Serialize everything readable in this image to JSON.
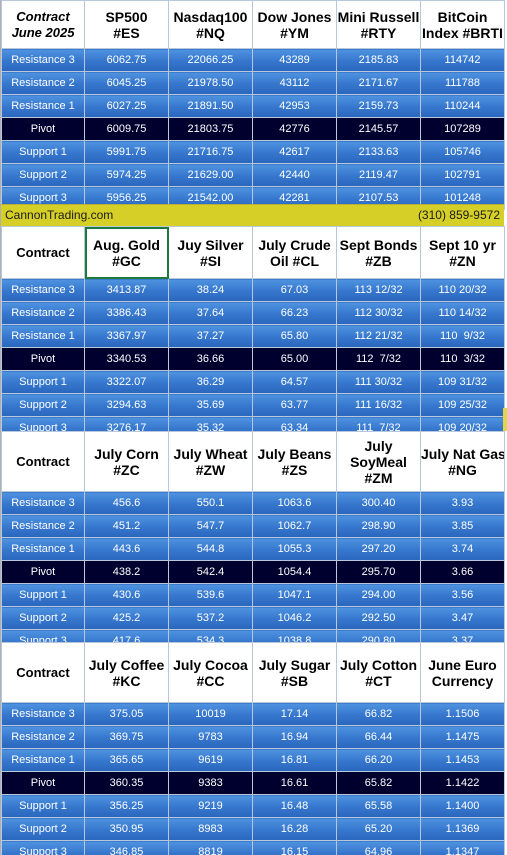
{
  "site": "CannonTrading.com",
  "phone": "(310) 859-9572",
  "colors": {
    "row_blue": "#3576cc",
    "pivot_navy": "#00002e",
    "banner_yellow": "#d6cf27",
    "selection_green": "#1d7a3a"
  },
  "blocks": [
    {
      "header_label": "Contract June 2025",
      "header_label_lines": [
        "Contract",
        "June 2025"
      ],
      "columns": [
        [
          "SP500",
          "#ES"
        ],
        [
          "Nasdaq100",
          "#NQ"
        ],
        [
          "Dow Jones",
          "#YM"
        ],
        [
          "Mini Russell",
          "#RTY"
        ],
        [
          "BitCoin",
          "Index #BRTI"
        ]
      ],
      "rows": [
        {
          "label": "Resistance 3",
          "values": [
            "6062.75",
            "22066.25",
            "43289",
            "2185.83",
            "114742"
          ]
        },
        {
          "label": "Resistance 2",
          "values": [
            "6045.25",
            "21978.50",
            "43112",
            "2171.67",
            "111788"
          ]
        },
        {
          "label": "Resistance 1",
          "values": [
            "6027.25",
            "21891.50",
            "42953",
            "2159.73",
            "110244"
          ]
        },
        {
          "label": "Pivot",
          "values": [
            "6009.75",
            "21803.75",
            "42776",
            "2145.57",
            "107289"
          ]
        },
        {
          "label": "Support 1",
          "values": [
            "5991.75",
            "21716.75",
            "42617",
            "2133.63",
            "105746"
          ]
        },
        {
          "label": "Support 2",
          "values": [
            "5974.25",
            "21629.00",
            "42440",
            "2119.47",
            "102791"
          ]
        },
        {
          "label": "Support 3",
          "values": [
            "5956.25",
            "21542.00",
            "42281",
            "2107.53",
            "101248"
          ]
        }
      ]
    },
    {
      "header_label": "Contract",
      "header_label_lines": [
        "Contract"
      ],
      "columns": [
        [
          "Aug. Gold",
          "#GC"
        ],
        [
          "Juy Silver",
          "#SI"
        ],
        [
          "July Crude",
          "Oil #CL"
        ],
        [
          "Sept Bonds",
          "#ZB"
        ],
        [
          "Sept 10 yr",
          "#ZN"
        ]
      ],
      "rows": [
        {
          "label": "Resistance 3",
          "values": [
            "3413.87",
            "38.24",
            "67.03",
            "113 12/32",
            "110 20/32"
          ]
        },
        {
          "label": "Resistance 2",
          "values": [
            "3386.43",
            "37.64",
            "66.23",
            "112 30/32",
            "110 14/32"
          ]
        },
        {
          "label": "Resistance 1",
          "values": [
            "3367.97",
            "37.27",
            "65.80",
            "112 21/32",
            "110  9/32"
          ]
        },
        {
          "label": "Pivot",
          "values": [
            "3340.53",
            "36.66",
            "65.00",
            "112  7/32",
            "110  3/32"
          ]
        },
        {
          "label": "Support 1",
          "values": [
            "3322.07",
            "36.29",
            "64.57",
            "111 30/32",
            "109 31/32"
          ]
        },
        {
          "label": "Support 2",
          "values": [
            "3294.63",
            "35.69",
            "63.77",
            "111 16/32",
            "109 25/32"
          ]
        },
        {
          "label": "Support 3",
          "values": [
            "3276.17",
            "35.32",
            "63.34",
            "111  7/32",
            "109 20/32"
          ]
        }
      ]
    },
    {
      "header_label": "Contract",
      "header_label_lines": [
        "Contract"
      ],
      "columns": [
        [
          "July Corn",
          "#ZC"
        ],
        [
          "July  Wheat",
          "#ZW"
        ],
        [
          "July Beans",
          "#ZS"
        ],
        [
          "July",
          "SoyMeal",
          "#ZM"
        ],
        [
          "July Nat Gas",
          "#NG"
        ]
      ],
      "rows": [
        {
          "label": "Resistance 3",
          "values": [
            "456.6",
            "550.1",
            "1063.6",
            "300.40",
            "3.93"
          ]
        },
        {
          "label": "Resistance 2",
          "values": [
            "451.2",
            "547.7",
            "1062.7",
            "298.90",
            "3.85"
          ]
        },
        {
          "label": "Resistance 1",
          "values": [
            "443.6",
            "544.8",
            "1055.3",
            "297.20",
            "3.74"
          ]
        },
        {
          "label": "Pivot",
          "values": [
            "438.2",
            "542.4",
            "1054.4",
            "295.70",
            "3.66"
          ]
        },
        {
          "label": "Support 1",
          "values": [
            "430.6",
            "539.6",
            "1047.1",
            "294.00",
            "3.56"
          ]
        },
        {
          "label": "Support 2",
          "values": [
            "425.2",
            "537.2",
            "1046.2",
            "292.50",
            "3.47"
          ]
        },
        {
          "label": "Support 3",
          "values": [
            "417.6",
            "534.3",
            "1038.8",
            "290.80",
            "3.37"
          ]
        }
      ]
    },
    {
      "header_label": "Contract",
      "header_label_lines": [
        "Contract"
      ],
      "columns": [
        [
          "July Coffee",
          "#KC"
        ],
        [
          "July Cocoa",
          "#CC"
        ],
        [
          "July Sugar",
          "#SB"
        ],
        [
          "July Cotton",
          "#CT"
        ],
        [
          "June Euro",
          "Currency"
        ]
      ],
      "rows": [
        {
          "label": "Resistance 3",
          "values": [
            "375.05",
            "10019",
            "17.14",
            "66.82",
            "1.1506"
          ]
        },
        {
          "label": "Resistance 2",
          "values": [
            "369.75",
            "9783",
            "16.94",
            "66.44",
            "1.1475"
          ]
        },
        {
          "label": "Resistance 1",
          "values": [
            "365.65",
            "9619",
            "16.81",
            "66.20",
            "1.1453"
          ]
        },
        {
          "label": "Pivot",
          "values": [
            "360.35",
            "9383",
            "16.61",
            "65.82",
            "1.1422"
          ]
        },
        {
          "label": "Support 1",
          "values": [
            "356.25",
            "9219",
            "16.48",
            "65.58",
            "1.1400"
          ]
        },
        {
          "label": "Support 2",
          "values": [
            "350.95",
            "8983",
            "16.28",
            "65.20",
            "1.1369"
          ]
        },
        {
          "label": "Support 3",
          "values": [
            "346.85",
            "8819",
            "16.15",
            "64.96",
            "1.1347"
          ]
        }
      ]
    }
  ]
}
